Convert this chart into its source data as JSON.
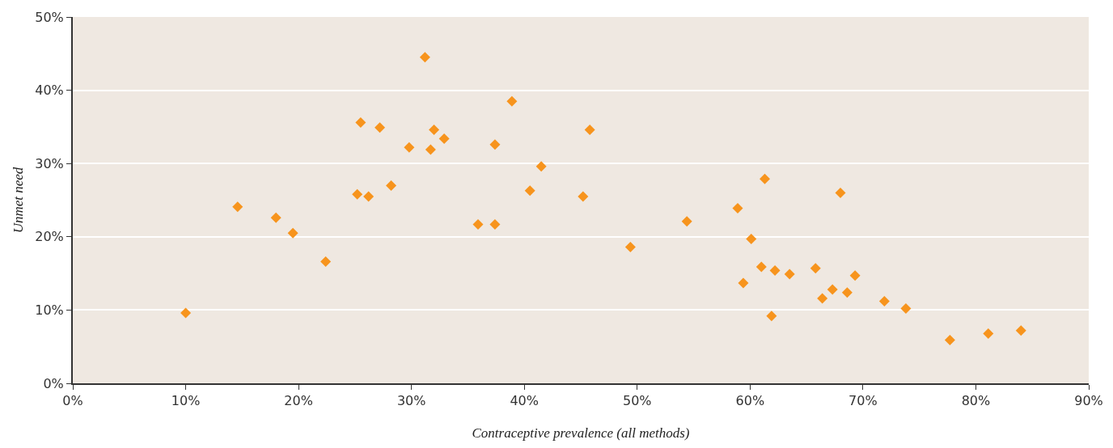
{
  "chart_data": {
    "type": "scatter",
    "xlabel": "Contraceptive prevalence (all methods)",
    "ylabel": "Unmet need",
    "x": [
      10,
      14.6,
      18.0,
      19.5,
      22.4,
      25.2,
      25.5,
      26.2,
      27.2,
      28.2,
      29.8,
      31.2,
      31.7,
      32.0,
      32.9,
      35.9,
      37.4,
      37.4,
      38.9,
      40.5,
      41.5,
      45.2,
      45.8,
      49.4,
      54.4,
      58.9,
      59.4,
      60.1,
      61.0,
      61.3,
      61.9,
      62.2,
      63.5,
      65.8,
      66.4,
      67.3,
      68.0,
      68.6,
      69.3,
      71.9,
      73.8,
      77.7,
      81.1,
      84.0
    ],
    "values": [
      9.6,
      24.1,
      22.6,
      20.5,
      16.6,
      25.8,
      35.6,
      25.5,
      34.9,
      27.0,
      32.2,
      44.5,
      31.9,
      34.6,
      33.4,
      21.7,
      21.7,
      32.6,
      38.5,
      26.3,
      29.6,
      25.5,
      34.6,
      18.6,
      22.1,
      23.9,
      13.7,
      19.7,
      15.9,
      27.9,
      9.2,
      15.4,
      14.9,
      15.7,
      11.6,
      12.8,
      26.0,
      12.4,
      14.7,
      11.2,
      10.2,
      5.9,
      6.8,
      7.2
    ],
    "color": "#f7941d",
    "marker": "diamond",
    "grid": "y",
    "xlim": [
      0,
      90
    ],
    "xticks": [
      {
        "value": 0,
        "label": "0%"
      },
      {
        "value": 10,
        "label": "10%"
      },
      {
        "value": 20,
        "label": "20%"
      },
      {
        "value": 30,
        "label": "30%"
      },
      {
        "value": 40,
        "label": "40%"
      },
      {
        "value": 50,
        "label": "50%"
      },
      {
        "value": 60,
        "label": "60%"
      },
      {
        "value": 70,
        "label": "70%"
      },
      {
        "value": 80,
        "label": "80%"
      },
      {
        "value": 90,
        "label": "90%"
      }
    ],
    "ylim": [
      0,
      50
    ],
    "yticks": [
      {
        "value": 0,
        "label": "0%"
      },
      {
        "value": 10,
        "label": "10%"
      },
      {
        "value": 20,
        "label": "20%"
      },
      {
        "value": 30,
        "label": "30%"
      },
      {
        "value": 40,
        "label": "40%"
      },
      {
        "value": 50,
        "label": "50%"
      }
    ]
  }
}
